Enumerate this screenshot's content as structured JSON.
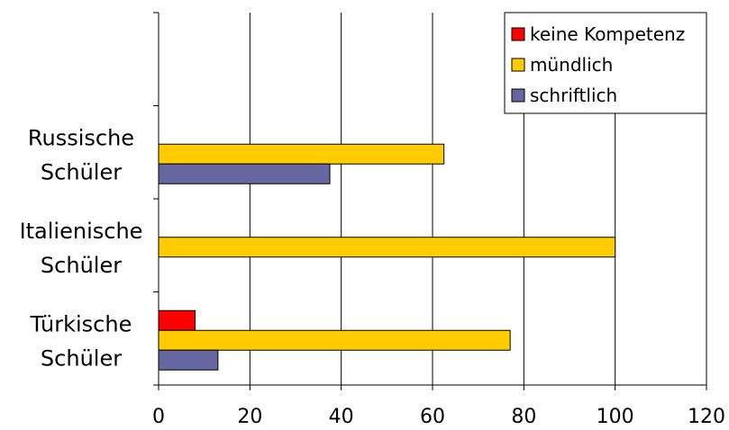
{
  "chart_data": {
    "type": "bar",
    "orientation": "horizontal",
    "categories": [
      [
        "Russische",
        "Schüler"
      ],
      [
        "Italienische",
        "Schüler"
      ],
      [
        "Türkische",
        "Schüler"
      ]
    ],
    "series": [
      {
        "name": "keine Kompetenz",
        "color": "#ff0000",
        "values": [
          0,
          0,
          8
        ]
      },
      {
        "name": "mündlich",
        "color": "#ffcc00",
        "values": [
          62.5,
          100,
          77
        ]
      },
      {
        "name": "schriftlich",
        "color": "#6666a0",
        "values": [
          37.5,
          0,
          13
        ]
      }
    ],
    "x_ticks": [
      0,
      20,
      40,
      60,
      80,
      100,
      120
    ],
    "xlim": [
      0,
      120
    ],
    "grid": "vertical",
    "legend": "top-right",
    "title": "",
    "xlabel": "",
    "ylabel": ""
  }
}
